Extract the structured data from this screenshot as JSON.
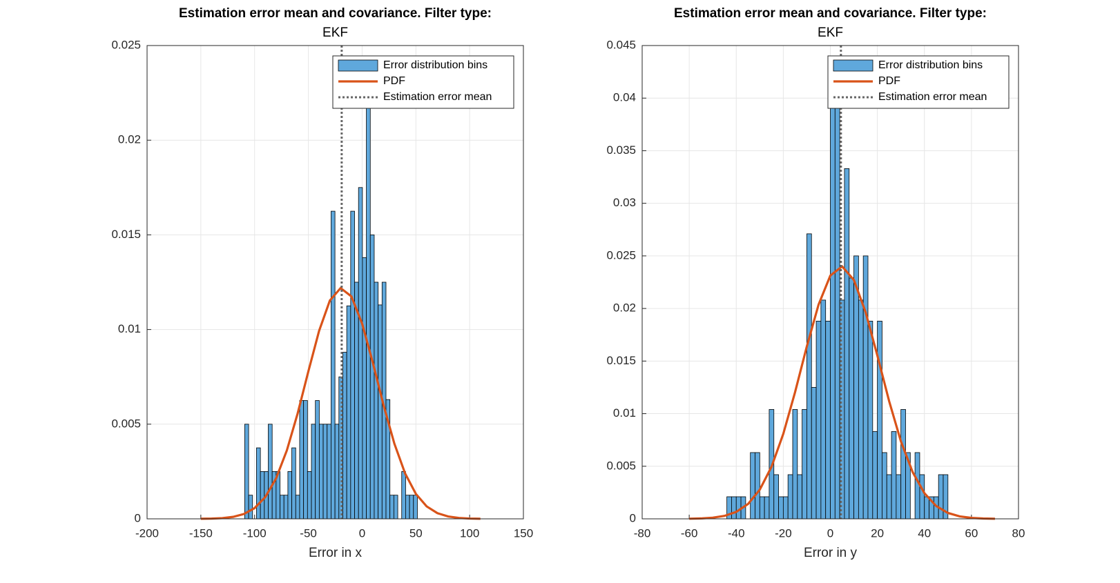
{
  "chart_data": [
    {
      "type": "histogram",
      "title": [
        "Estimation error mean and covariance. Filter type:",
        "EKF"
      ],
      "xlabel": "Error in x",
      "hist": {
        "name": "Error distribution bins",
        "color": "#5fa8dc",
        "bins": [
          -109.2,
          -105.55,
          -101.9,
          -98.25,
          -94.6,
          -90.95,
          -87.3,
          -83.65,
          -80,
          -76.35,
          -72.7,
          -69.05,
          -65.4,
          -61.75,
          -58.1,
          -54.45,
          -50.8,
          -47.15,
          -43.5,
          -39.85,
          -36.2,
          -32.55,
          -28.9,
          -25.25,
          -21.6,
          -17.95,
          -14.3,
          -10.65,
          -7,
          -3.35,
          0.3,
          3.95,
          7.6,
          11.25,
          14.9,
          18.55,
          22.2,
          25.85,
          29.5,
          33.15,
          36.8,
          40.45,
          44.1,
          47.75,
          51.4
        ],
        "values": [
          0.005,
          0.00125,
          0,
          0.00375,
          0.0025,
          0.0025,
          0.005,
          0.0025,
          0.0025,
          0.00125,
          0.00125,
          0.0025,
          0.00375,
          0.00125,
          0.00625,
          0.00625,
          0.0025,
          0.005,
          0.00625,
          0.005,
          0.005,
          0.005,
          0.01625,
          0.005,
          0.0075,
          0.0088,
          0.01125,
          0.01625,
          0.0125,
          0.0175,
          0.0138,
          0.0225,
          0.015,
          0.0125,
          0.0113,
          0.0125,
          0.0063,
          0.00125,
          0.00125,
          0,
          0.0025,
          0.00125,
          0.00125,
          0.00125
        ]
      },
      "pdf": {
        "name": "PDF",
        "color": "#d95319",
        "x": [
          -150,
          -140,
          -130,
          -120,
          -110,
          -100,
          -90,
          -80,
          -70,
          -60,
          -50,
          -40,
          -30,
          -20,
          -10,
          0,
          10,
          20,
          30,
          40,
          50,
          60,
          70,
          80,
          90,
          100,
          110
        ],
        "values": [
          4e-06,
          1.3e-05,
          3.8e-05,
          0.000104,
          0.000254,
          0.000568,
          0.001156,
          0.002141,
          0.003616,
          0.00556,
          0.00779,
          0.00993,
          0.01153,
          0.01219,
          0.01175,
          0.01031,
          0.00824,
          0.00599,
          0.00397,
          0.002396,
          0.001317,
          0.000659,
          0.0003,
          0.000125,
          4.7e-05,
          1.6e-05,
          5e-06
        ]
      },
      "mean": {
        "name": "Estimation error mean",
        "color": "#666666",
        "value": -19
      },
      "xlim": [
        -200,
        150
      ],
      "xticks": [
        -200,
        -150,
        -100,
        -50,
        0,
        50,
        100,
        150
      ],
      "ylim": [
        0,
        0.025
      ],
      "yticks": [
        0,
        0.005,
        0.01,
        0.015,
        0.02,
        0.025
      ],
      "grid": true,
      "legend": "northeast"
    },
    {
      "type": "histogram",
      "title": [
        "Estimation error mean and covariance. Filter type:",
        "EKF"
      ],
      "xlabel": "Error in y",
      "hist": {
        "name": "Error distribution bins",
        "color": "#5fa8dc",
        "bins": [
          -44,
          -42,
          -40,
          -38,
          -36,
          -34,
          -32,
          -30,
          -28,
          -26,
          -24,
          -22,
          -20,
          -18,
          -16,
          -14,
          -12,
          -10,
          -8,
          -6,
          -4,
          -2,
          0,
          2,
          4,
          6,
          8,
          10,
          12,
          14,
          16,
          18,
          20,
          22,
          24,
          26,
          28,
          30,
          32,
          34,
          36,
          38,
          40,
          42,
          44,
          46,
          48,
          50
        ],
        "values": [
          0.0021,
          0.0021,
          0.0021,
          0.0021,
          0,
          0.0063,
          0.0063,
          0.0021,
          0.0021,
          0.0104,
          0.0042,
          0.0021,
          0.0021,
          0.0042,
          0.0104,
          0.0042,
          0.0104,
          0.0271,
          0.0125,
          0.0188,
          0.0208,
          0.0188,
          0.0396,
          0.0396,
          0.0208,
          0.0333,
          0.0229,
          0.025,
          0.0208,
          0.025,
          0.0188,
          0.0083,
          0.0188,
          0.0063,
          0.0042,
          0.0083,
          0.0042,
          0.0104,
          0.0063,
          0,
          0.0063,
          0.0042,
          0.0021,
          0.0021,
          0.0021,
          0.0042,
          0.0042
        ]
      },
      "pdf": {
        "name": "PDF",
        "color": "#d95319",
        "x": [
          -60,
          -55,
          -50,
          -45,
          -40,
          -35,
          -30,
          -25,
          -20,
          -15,
          -10,
          -5,
          0,
          5,
          10,
          15,
          20,
          25,
          30,
          35,
          40,
          45,
          50,
          55,
          60,
          65,
          70
        ],
        "values": [
          1.26e-05,
          3.9e-05,
          0.000109,
          0.000281,
          0.00066,
          0.00141,
          0.00277,
          0.00495,
          0.00808,
          0.01204,
          0.01639,
          0.02037,
          0.02313,
          0.024,
          0.02272,
          0.01965,
          0.01552,
          0.01119,
          0.00737,
          0.00444,
          0.00244,
          0.00122,
          0.00056,
          0.000234,
          8.95e-05,
          3.12e-05,
          1e-05
        ]
      },
      "mean": {
        "name": "Estimation error mean",
        "color": "#666666",
        "value": 4.5
      },
      "xlim": [
        -80,
        80
      ],
      "xticks": [
        -80,
        -60,
        -40,
        -20,
        0,
        20,
        40,
        60,
        80
      ],
      "ylim": [
        0,
        0.045
      ],
      "yticks": [
        0,
        0.005,
        0.01,
        0.015,
        0.02,
        0.025,
        0.03,
        0.035,
        0.04,
        0.045
      ],
      "grid": true,
      "legend": "northeast"
    }
  ]
}
